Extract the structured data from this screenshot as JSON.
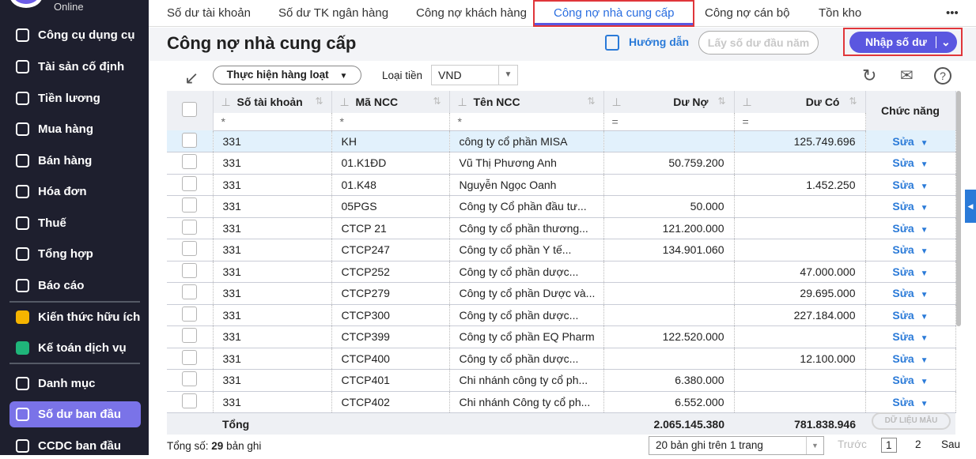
{
  "sidebar": {
    "logo_text": "Online",
    "items": [
      {
        "label": "Công cụ dụng cụ",
        "icon": "tools-icon"
      },
      {
        "label": "Tài sản cố định",
        "icon": "truck-icon"
      },
      {
        "label": "Tiền lương",
        "icon": "salary-bag-icon"
      },
      {
        "label": "Mua hàng",
        "icon": "cart-icon"
      },
      {
        "label": "Bán hàng",
        "icon": "store-icon"
      },
      {
        "label": "Hóa đơn",
        "icon": "invoice-icon"
      },
      {
        "label": "Thuế",
        "icon": "bank-icon"
      },
      {
        "label": "Tổng hợp",
        "icon": "book-icon"
      },
      {
        "label": "Báo cáo",
        "icon": "report-chart-icon"
      },
      {
        "label": "Kiến thức hữu ích",
        "icon": "knowledge-icon"
      },
      {
        "label": "Kế toán dịch vụ",
        "icon": "service-icon"
      },
      {
        "label": "Danh mục",
        "icon": "list-icon"
      },
      {
        "label": "Số dư ban đầu",
        "icon": "balance-icon",
        "active": true
      },
      {
        "label": "CCDC ban đầu",
        "icon": "ccdc-icon"
      }
    ]
  },
  "tabs": [
    "Số dư tài khoản",
    "Số dư TK ngân hàng",
    "Công nợ khách hàng",
    "Công nợ nhà cung cấp",
    "Công nợ cán bộ",
    "Tồn kho"
  ],
  "tabs_more": "•••",
  "header": {
    "title": "Công nợ nhà cung cấp",
    "guide": "Hướng dẫn",
    "get_balance": "Lấy số dư đầu năm",
    "import": "Nhập số dư"
  },
  "toolbar": {
    "bulk": "Thực hiện hàng loạt",
    "currency_label": "Loại tiền",
    "currency": "VND"
  },
  "table": {
    "headers": [
      "Số tài khoản",
      "Mã NCC",
      "Tên NCC",
      "Dư Nợ",
      "Dư Có",
      "Chức năng"
    ],
    "filters": [
      "*",
      "*",
      "*",
      "=",
      "="
    ],
    "edit_label": "Sửa",
    "rows": [
      [
        "331",
        "KH",
        "công ty cổ phần MISA",
        "",
        "125.749.696"
      ],
      [
        "331",
        "01.K1ĐD",
        "Vũ Thị Phương Anh",
        "50.759.200",
        ""
      ],
      [
        "331",
        "01.K48",
        "Nguyễn Ngọc Oanh",
        "",
        "1.452.250"
      ],
      [
        "331",
        "05PGS",
        "Công ty Cổ phần đầu tư...",
        "50.000",
        ""
      ],
      [
        "331",
        "CTCP 21",
        "Công ty cổ phần thương...",
        "121.200.000",
        ""
      ],
      [
        "331",
        "CTCP247",
        "Công ty cổ phần Y tế...",
        "134.901.060",
        ""
      ],
      [
        "331",
        "CTCP252",
        "Công ty cổ phần dược...",
        "",
        "47.000.000"
      ],
      [
        "331",
        "CTCP279",
        "Công ty cổ phần Dược và...",
        "",
        "29.695.000"
      ],
      [
        "331",
        "CTCP300",
        "Công ty cổ phần dược...",
        "",
        "227.184.000"
      ],
      [
        "331",
        "CTCP399",
        "Công ty cổ phần EQ Pharm",
        "122.520.000",
        ""
      ],
      [
        "331",
        "CTCP400",
        "Công ty cổ phần dược...",
        "",
        "12.100.000"
      ],
      [
        "331",
        "CTCP401",
        "Chi nhánh công ty cổ ph...",
        "6.380.000",
        ""
      ],
      [
        "331",
        "CTCP402",
        "Chi nhánh Công ty cổ ph...",
        "6.552.000",
        ""
      ]
    ],
    "total_label": "Tổng",
    "total_debit": "2.065.145.380",
    "total_credit": "781.838.946"
  },
  "footer": {
    "total_prefix": "Tổng số:",
    "total_count": "29",
    "total_suffix": "bản ghi",
    "per_page": "20 bản ghi trên 1 trang",
    "prev": "Trước",
    "pages": [
      "1",
      "2"
    ],
    "next": "Sau"
  },
  "watermark": "DỮ LIỆU MẪU",
  "colors": {
    "sidebar": "#1e1f2e",
    "accent": "#5a57e0",
    "link": "#2a7ad8",
    "highlight": "#e0363a"
  }
}
